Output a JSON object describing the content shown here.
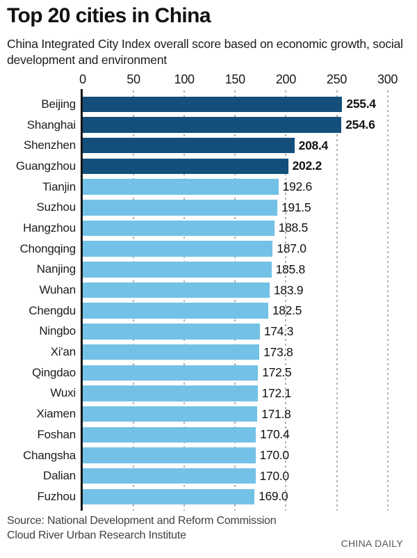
{
  "header": {
    "title": "Top 20 cities in China",
    "subtitle": "China Integrated City Index overall score based on economic growth, social development and environment"
  },
  "footer": {
    "source_line1": "Source:  National Development and Reform Commission",
    "source_line2": "Cloud River Urban Research Institute",
    "credit": "CHINA DAILY"
  },
  "colors": {
    "bar_highlight": "#144F7C",
    "bar_normal": "#73C1E6",
    "gridline": "#B2B2B2",
    "axis_spine": "#151515",
    "text": "#1C1C1C"
  },
  "chart_data": {
    "type": "bar",
    "orientation": "horizontal",
    "title": "Top 20 cities in China",
    "subtitle": "China Integrated City Index overall score based on economic growth, social development and environment",
    "categories": [
      "Beijing",
      "Shanghai",
      "Shenzhen",
      "Guangzhou",
      "Tianjin",
      "Suzhou",
      "Hangzhou",
      "Chongqing",
      "Nanjing",
      "Wuhan",
      "Chengdu",
      "Ningbo",
      "Xi'an",
      "Qingdao",
      "Wuxi",
      "Xiamen",
      "Foshan",
      "Changsha",
      "Dalian",
      "Fuzhou"
    ],
    "values": [
      255.4,
      254.6,
      208.4,
      202.2,
      192.6,
      191.5,
      188.5,
      187.0,
      185.8,
      183.9,
      182.5,
      174.3,
      173.8,
      172.5,
      172.1,
      171.8,
      170.4,
      170.0,
      170.0,
      169.0
    ],
    "value_labels": [
      "255.4",
      "254.6",
      "208.4",
      "202.2",
      "192.6",
      "191.5",
      "188.5",
      "187.0",
      "185.8",
      "183.9",
      "182.5",
      "174.3",
      "173.8",
      "172.5",
      "172.1",
      "171.8",
      "170.4",
      "170.0",
      "170.0",
      "169.0"
    ],
    "highlight_first_n": 4,
    "x_ticks": [
      0,
      50,
      100,
      150,
      200,
      250,
      300
    ],
    "xlim": [
      0,
      300
    ],
    "grid": "dashed-vertical",
    "axis_position": "top",
    "legend": "none",
    "xlabel": "",
    "ylabel": ""
  }
}
